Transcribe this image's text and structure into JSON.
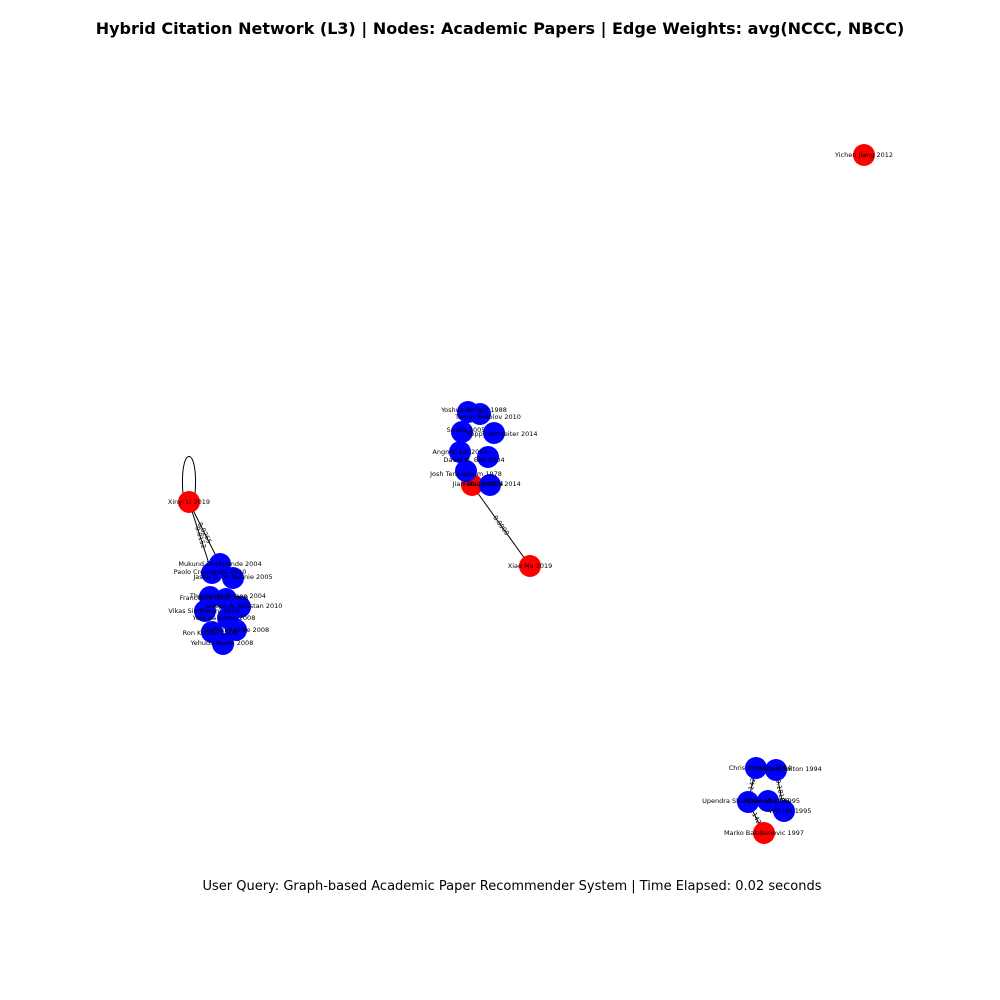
{
  "figure": {
    "title": "Hybrid Citation Network (L3) | Nodes: Academic Papers | Edge Weights: avg(NCCC, NBCC)",
    "footer": "User Query: Graph-based Academic Paper Recommender System | Time Elapsed: 0.02 seconds"
  },
  "colors": {
    "seed_node": "#ff0000",
    "neighbor_node": "#0000ff"
  },
  "nodes": [
    {
      "id": "yichen",
      "label": "Yichen Jiang 2012",
      "color": "red"
    },
    {
      "id": "xinyi",
      "label": "Xinyi Li 2019",
      "color": "red"
    },
    {
      "id": "xiaoma",
      "label": "Xiao Ma 2019",
      "color": "red"
    },
    {
      "id": "marko",
      "label": "Marko Balabanovic 1997",
      "color": "red"
    },
    {
      "id": "jiawang",
      "label": "Jian Wang 2014",
      "color": "red"
    },
    {
      "id": "c1a",
      "label": "Yoshua Bengio 1988",
      "color": "blue"
    },
    {
      "id": "c1b",
      "label": "Tomas Mikolov 2010",
      "color": "blue"
    },
    {
      "id": "c1c",
      "label": "Sepp Hochreiter 2014",
      "color": "blue"
    },
    {
      "id": "c1d",
      "label": "Smola 2005",
      "color": "blue"
    },
    {
      "id": "c1e",
      "label": "Angmin Lin 2004",
      "color": "blue"
    },
    {
      "id": "c1f",
      "label": "David M. Blei 2004",
      "color": "blue"
    },
    {
      "id": "c1g",
      "label": "Josh Tenenbaum 1978",
      "color": "blue"
    },
    {
      "id": "c1h",
      "label": "Fabio Bellini 2014",
      "color": "blue"
    },
    {
      "id": "c2a",
      "label": "Mukund Deshpande 2004",
      "color": "blue"
    },
    {
      "id": "c2b",
      "label": "Paolo Cremonesi 2010",
      "color": "blue"
    },
    {
      "id": "c2c",
      "label": "Jason D. M. Rennie 2005",
      "color": "blue"
    },
    {
      "id": "c2d",
      "label": "Thomas Hofmann 2004",
      "color": "blue"
    },
    {
      "id": "c2e",
      "label": "Francesco Ricci 2008",
      "color": "blue"
    },
    {
      "id": "c2f",
      "label": "Joseph A. Konstan 2010",
      "color": "blue"
    },
    {
      "id": "c2g",
      "label": "Vikas Sindhwani 2010",
      "color": "blue"
    },
    {
      "id": "c2h",
      "label": "Yehuda Koren 2008",
      "color": "blue"
    },
    {
      "id": "c2i",
      "label": "Steffen Rendle 2008",
      "color": "blue"
    },
    {
      "id": "c2j",
      "label": "Ron Kohavi 2008",
      "color": "blue"
    },
    {
      "id": "c2k",
      "label": "Yehuda Koren 2008",
      "color": "blue"
    },
    {
      "id": "c3a",
      "label": "Chris Buckley 1994",
      "color": "blue"
    },
    {
      "id": "c3b",
      "label": "Gerard Salton 1994",
      "color": "blue"
    },
    {
      "id": "c3c",
      "label": "Upendra Shardanand 1995",
      "color": "blue"
    },
    {
      "id": "c3d",
      "label": "Pattie Maes 1995",
      "color": "blue"
    },
    {
      "id": "c3e",
      "label": "Will Hill 1995",
      "color": "blue"
    }
  ],
  "edges": [
    {
      "source": "xinyi",
      "target": "xinyi",
      "label": ""
    },
    {
      "source": "xinyi",
      "target": "c2a",
      "label": "0.0265"
    },
    {
      "source": "xinyi",
      "target": "c2b",
      "label": "0.0152"
    },
    {
      "source": "jiawang",
      "target": "xiaoma",
      "label": "0.0000"
    },
    {
      "source": "c3a",
      "target": "c3c",
      "label": "0.1429"
    },
    {
      "source": "c3b",
      "target": "c3e",
      "label": "0.1818"
    },
    {
      "source": "c3c",
      "target": "marko",
      "label": "0.1429"
    }
  ]
}
